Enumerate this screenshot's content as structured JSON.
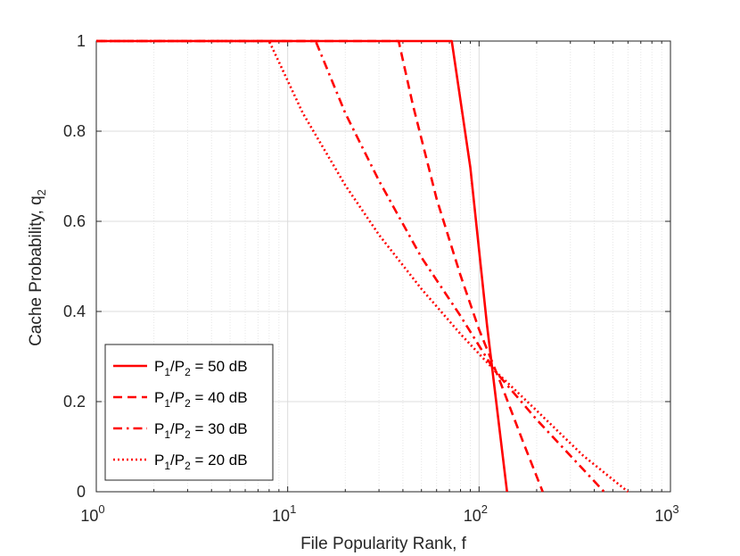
{
  "chart_data": {
    "type": "line",
    "xscale": "log",
    "xlim": [
      1,
      1000
    ],
    "ylim": [
      0,
      1
    ],
    "grid": true,
    "legend_position": "bottom-left",
    "xlabel": "File Popularity Rank, f",
    "ylabel": {
      "base": "Cache Probability, q",
      "sub": "2"
    },
    "x_ticks": [
      {
        "base": "10",
        "exp": "0",
        "value": 1
      },
      {
        "base": "10",
        "exp": "1",
        "value": 10
      },
      {
        "base": "10",
        "exp": "2",
        "value": 100
      },
      {
        "base": "10",
        "exp": "3",
        "value": 1000
      }
    ],
    "y_ticks": [
      {
        "label": "0",
        "value": 0
      },
      {
        "label": "0.2",
        "value": 0.2
      },
      {
        "label": "0.4",
        "value": 0.4
      },
      {
        "label": "0.6",
        "value": 0.6
      },
      {
        "label": "0.8",
        "value": 0.8
      },
      {
        "label": "1",
        "value": 1
      }
    ],
    "color": "#ff0000",
    "series": [
      {
        "name": "P1/P2 = 50 dB",
        "legend": {
          "a": "P",
          "a_sub": "1",
          "b": "/P",
          "b_sub": "2",
          "rest": " = 50 dB"
        },
        "dash": "solid",
        "points": [
          [
            1,
            1
          ],
          [
            72,
            1
          ],
          [
            90,
            0.72
          ],
          [
            110,
            0.37
          ],
          [
            140,
            0
          ]
        ]
      },
      {
        "name": "P1/P2 = 40 dB",
        "legend": {
          "a": "P",
          "a_sub": "1",
          "b": "/P",
          "b_sub": "2",
          "rest": " = 40 dB"
        },
        "dash": "dashed",
        "points": [
          [
            1,
            1
          ],
          [
            38,
            1
          ],
          [
            45,
            0.86
          ],
          [
            60,
            0.65
          ],
          [
            80,
            0.48
          ],
          [
            100,
            0.36
          ],
          [
            130,
            0.24
          ],
          [
            170,
            0.11
          ],
          [
            215,
            0
          ]
        ]
      },
      {
        "name": "P1/P2 = 30 dB",
        "legend": {
          "a": "P",
          "a_sub": "1",
          "b": "/P",
          "b_sub": "2",
          "rest": " = 30 dB"
        },
        "dash": "dashdot",
        "points": [
          [
            1,
            1
          ],
          [
            14,
            1
          ],
          [
            20,
            0.84
          ],
          [
            30,
            0.69
          ],
          [
            50,
            0.52
          ],
          [
            80,
            0.39
          ],
          [
            120,
            0.27
          ],
          [
            200,
            0.16
          ],
          [
            300,
            0.08
          ],
          [
            450,
            0
          ]
        ]
      },
      {
        "name": "P1/P2 = 20 dB",
        "legend": {
          "a": "P",
          "a_sub": "1",
          "b": "/P",
          "b_sub": "2",
          "rest": " = 20 dB"
        },
        "dash": "dotted",
        "points": [
          [
            1,
            1
          ],
          [
            8,
            1
          ],
          [
            12,
            0.84
          ],
          [
            20,
            0.68
          ],
          [
            30,
            0.57
          ],
          [
            50,
            0.45
          ],
          [
            80,
            0.35
          ],
          [
            120,
            0.27
          ],
          [
            200,
            0.18
          ],
          [
            350,
            0.08
          ],
          [
            600,
            0
          ]
        ]
      }
    ]
  }
}
